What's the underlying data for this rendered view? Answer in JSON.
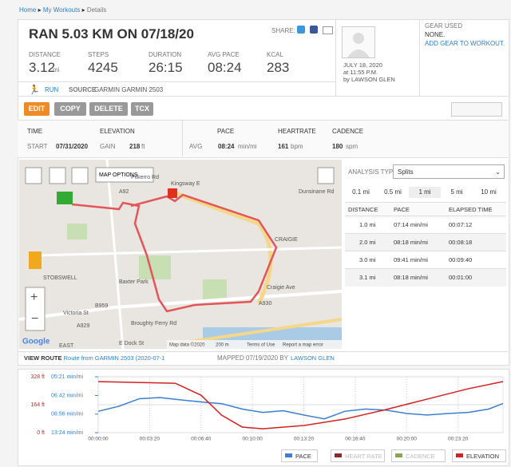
{
  "breadcrumb": [
    "Home",
    "My Workouts",
    "Details"
  ],
  "header": {
    "title": "RAN 5.03 KM ON 07/18/20",
    "share": "SHARE:"
  },
  "stats": [
    {
      "label": "DISTANCE",
      "value": "3.12",
      "unit": "mi"
    },
    {
      "label": "STEPS",
      "value": "4245"
    },
    {
      "label": "DURATION",
      "value": "26:15"
    },
    {
      "label": "AVG PACE",
      "value": "08:24"
    },
    {
      "label": "KCAL",
      "value": "283"
    }
  ],
  "activity": {
    "type": "RUN",
    "source_label": "SOURCE",
    "source": "GARMIN GARMIN 2503"
  },
  "date": [
    "JULY 18, 2020",
    "at 11:55 P.M.",
    "by LAWSON GLEN"
  ],
  "gear": {
    "title": "GEAR USED",
    "value": "NONE.",
    "link": "ADD GEAR TO WORKOUT."
  },
  "buttons": [
    "EDIT",
    "COPY",
    "DELETE",
    "TCX"
  ],
  "summary": {
    "time": "TIME",
    "start": "START",
    "start_value": "07/31/2020",
    "elevation": "ELEVATION",
    "gain": "GAIN",
    "gain_value": "218",
    "gain_unit": "ft",
    "pace": "PACE",
    "avg": "AVG",
    "pace_value": "08:24",
    "pace_unit": "min/mi",
    "heartrate": "HEARTRATE",
    "hr_value": "161",
    "hr_unit": "bpm",
    "cadence": "CADENCE",
    "cad_value": "180",
    "cad_unit": "spm"
  },
  "map": {
    "options": "MAP OPTIONS",
    "places": [
      "Pitkerro Rd",
      "Kingsway E",
      "CRAIGIE",
      "STOBSWELL",
      "Baxter Park",
      "Victoria St",
      "B959",
      "A930",
      "Broughty Ferry Rd",
      "E Dock St",
      "EAST",
      "Craigie Ave",
      "A92",
      "A929",
      "Dunsinane Rd"
    ],
    "google": "Google",
    "attribution": [
      "Map data ©2020",
      "200 m",
      "Terms of Use",
      "Report a map error"
    ]
  },
  "analysis": {
    "label": "ANALYSIS TYPE",
    "select": "Splits",
    "tabs": [
      "0.1 mi",
      "0.5 mi",
      "1 mi",
      "5 mi",
      "10 mi"
    ],
    "columns": [
      "DISTANCE",
      "PACE",
      "ELAPSED TIME"
    ],
    "rows": [
      [
        "1.0 mi",
        "07:14 min/mi",
        "00:07:12"
      ],
      [
        "2.0 mi",
        "08:18 min/mi",
        "00:08:18"
      ],
      [
        "3.0 mi",
        "09:41 min/mi",
        "00:09:40"
      ],
      [
        "3.1 mi",
        "08:18 min/mi",
        "00:01:00"
      ]
    ]
  },
  "route": {
    "label": "VIEW ROUTE",
    "link": "Route from GARMIN 2503 (2020-07-1",
    "mapped": "MAPPED 07/19/2020 BY",
    "by": "LAWSON GLEN"
  },
  "chart_data": {
    "type": "line",
    "xlim": [
      0,
      1575
    ],
    "xticks": [
      {
        "value": 0,
        "label": "00:00:00"
      },
      {
        "value": 200,
        "label": "00:03:20"
      },
      {
        "value": 400,
        "label": "00:06:40"
      },
      {
        "value": 600,
        "label": "00:10:00"
      },
      {
        "value": 800,
        "label": "00:13:20"
      },
      {
        "value": 1000,
        "label": "00:16:40"
      },
      {
        "value": 1200,
        "label": "00:20:00"
      },
      {
        "value": 1400,
        "label": "00:23:20"
      }
    ],
    "ylim": [
      0,
      328
    ],
    "yticks": [
      {
        "value": 0,
        "label": "0 ft"
      },
      {
        "value": 164,
        "label": "164 ft"
      },
      {
        "value": 328,
        "label": "328 ft"
      }
    ],
    "y2lim": [
      804,
      321
    ],
    "y2ticks": [
      {
        "value": 804,
        "label": "13:24 min/mi"
      },
      {
        "value": 536,
        "label": "08:56 min/mi"
      },
      {
        "value": 402,
        "label": "06:42 min/mi"
      },
      {
        "value": 321,
        "label": "05:21 min/mi"
      }
    ],
    "series": [
      {
        "name": "PACE",
        "color": "#3a7fd0",
        "axis": "y2",
        "x": [
          0,
          80,
          160,
          240,
          320,
          400,
          480,
          560,
          640,
          720,
          800,
          880,
          960,
          1040,
          1120,
          1200,
          1280,
          1360,
          1440,
          1520,
          1575
        ],
        "values": [
          510,
          470,
          420,
          413,
          427,
          440,
          451,
          491,
          520,
          505,
          545,
          586,
          510,
          491,
          500,
          530,
          545,
          530,
          520,
          491,
          450
        ]
      },
      {
        "name": "HEART RATE",
        "color": "#8b2a2a",
        "values": []
      },
      {
        "name": "CADENCE",
        "color": "#8aa64a",
        "values": []
      },
      {
        "name": "ELEVATION",
        "color": "#d42020",
        "x": [
          0,
          300,
          400,
          480,
          560,
          640,
          800,
          960,
          1120,
          1280,
          1440,
          1575
        ],
        "values": [
          300,
          290,
          220,
          103,
          33,
          23,
          42,
          80,
          136,
          197,
          258,
          300
        ]
      }
    ]
  }
}
